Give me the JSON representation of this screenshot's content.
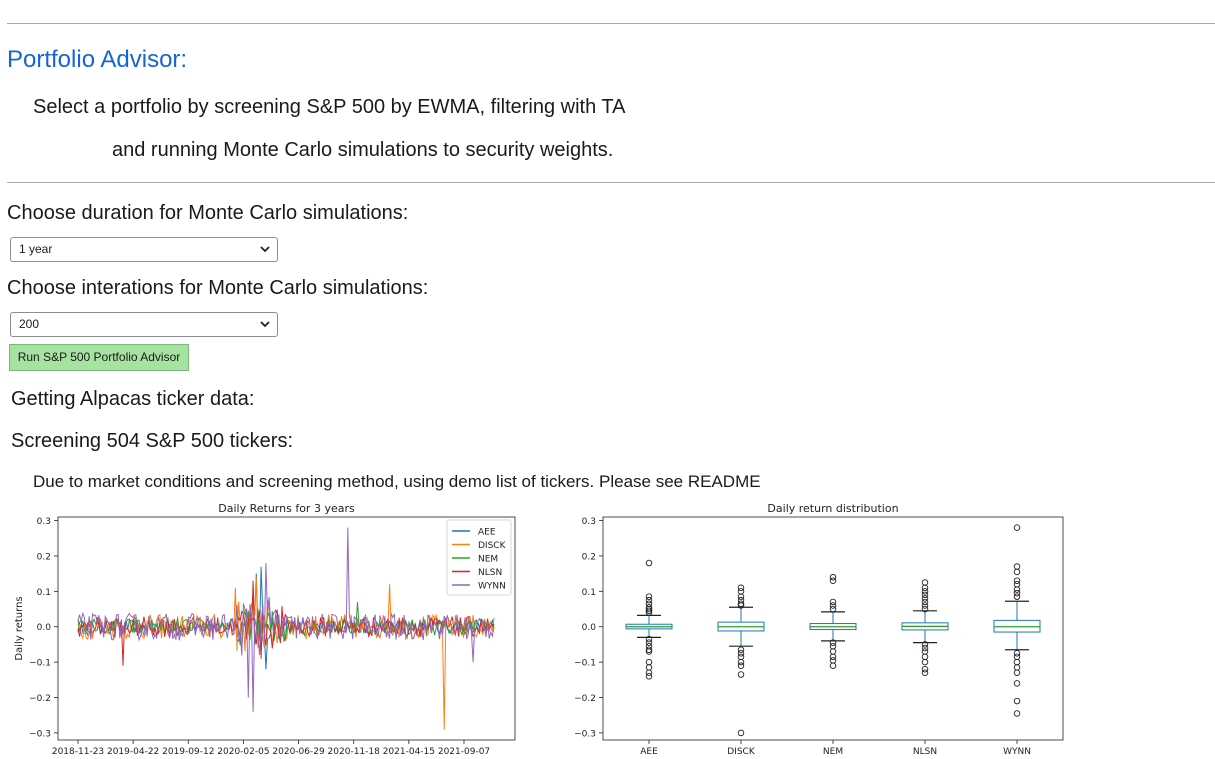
{
  "header": {
    "title": "Portfolio Advisor:",
    "subtitle_line1": "Select a portfolio by screening S&P 500 by EWMA, filtering with TA",
    "subtitle_line2": "and running Monte Carlo simulations to security weights."
  },
  "controls": {
    "duration_label": "Choose duration for Monte Carlo simulations:",
    "duration_value": "1 year",
    "iterations_label": "Choose interations for Monte Carlo simulations:",
    "iterations_value": "200",
    "run_button_label": "Run S&P 500 Portfolio Advisor"
  },
  "output": {
    "step1": "Getting Alpacas ticker data:",
    "step2": "Screening 504 S&P 500 tickers:",
    "note": "Due to market conditions and screening method, using demo list of tickers. Please see README"
  },
  "colors": {
    "title": "#1565d8",
    "run_button": "#a6e3a1",
    "AEE": "#1f77b4",
    "DISCK": "#ff7f0e",
    "NEM": "#2ca02c",
    "NLSN": "#d62728",
    "WYNN": "#9467bd"
  },
  "chart_data": [
    {
      "type": "line",
      "title": "Daily Returns for 3 years",
      "xlabel": "",
      "ylabel": "Daily returns",
      "x_ticks": [
        "2018-11-23",
        "2019-04-22",
        "2019-09-12",
        "2020-02-05",
        "2020-06-29",
        "2020-11-18",
        "2021-04-15",
        "2021-09-07"
      ],
      "y_ticks": [
        -0.3,
        -0.2,
        -0.1,
        0.0,
        0.1,
        0.2,
        0.3
      ],
      "ylim": [
        -0.32,
        0.31
      ],
      "legend": "top-right",
      "series": [
        {
          "name": "AEE",
          "noise": 0.012,
          "spikes": [
            [
              0.43,
              0.15
            ],
            [
              0.44,
              0.17
            ],
            [
              0.45,
              -0.12
            ]
          ]
        },
        {
          "name": "DISCK",
          "noise": 0.022,
          "spikes": [
            [
              0.38,
              0.11
            ],
            [
              0.43,
              0.14
            ],
            [
              0.75,
              0.12
            ],
            [
              0.88,
              -0.29
            ]
          ]
        },
        {
          "name": "NEM",
          "noise": 0.015,
          "spikes": [
            [
              0.42,
              0.1
            ],
            [
              0.44,
              -0.07
            ],
            [
              0.67,
              0.07
            ]
          ]
        },
        {
          "name": "NLSN",
          "noise": 0.018,
          "spikes": [
            [
              0.11,
              -0.11
            ],
            [
              0.42,
              0.13
            ],
            [
              0.44,
              -0.09
            ]
          ]
        },
        {
          "name": "WYNN",
          "noise": 0.024,
          "spikes": [
            [
              0.45,
              0.18
            ],
            [
              0.42,
              -0.24
            ],
            [
              0.41,
              -0.2
            ],
            [
              0.65,
              0.28
            ],
            [
              0.95,
              -0.1
            ]
          ]
        }
      ]
    },
    {
      "type": "box",
      "title": "Daily return distribution",
      "categories": [
        "AEE",
        "DISCK",
        "NEM",
        "NLSN",
        "WYNN"
      ],
      "y_ticks": [
        -0.3,
        -0.2,
        -0.1,
        0.0,
        0.1,
        0.2,
        0.3
      ],
      "ylim": [
        -0.32,
        0.31
      ],
      "boxes": [
        {
          "q1": -0.006,
          "median": 0.0,
          "q3": 0.007,
          "whislo": -0.03,
          "whishi": 0.032,
          "outliers": [
            0.18,
            0.085,
            0.075,
            0.065,
            0.055,
            0.05,
            0.045,
            0.04,
            -0.035,
            -0.045,
            -0.055,
            -0.065,
            -0.07,
            -0.1,
            -0.115,
            -0.13,
            -0.14
          ]
        },
        {
          "q1": -0.012,
          "median": 0.0,
          "q3": 0.013,
          "whislo": -0.055,
          "whishi": 0.055,
          "outliers": [
            0.11,
            0.1,
            0.085,
            0.075,
            0.065,
            0.06,
            -0.065,
            -0.075,
            -0.085,
            -0.1,
            -0.11,
            -0.135,
            -0.3
          ]
        },
        {
          "q1": -0.008,
          "median": 0.0,
          "q3": 0.009,
          "whislo": -0.04,
          "whishi": 0.042,
          "outliers": [
            0.14,
            0.13,
            0.07,
            0.06,
            0.05,
            -0.045,
            -0.055,
            -0.07,
            -0.085,
            -0.095,
            -0.11
          ]
        },
        {
          "q1": -0.009,
          "median": 0.001,
          "q3": 0.011,
          "whislo": -0.045,
          "whishi": 0.045,
          "outliers": [
            0.125,
            0.11,
            0.1,
            0.09,
            0.08,
            0.07,
            0.06,
            0.05,
            -0.05,
            -0.06,
            -0.07,
            -0.085,
            -0.1,
            -0.12,
            -0.13
          ]
        },
        {
          "q1": -0.015,
          "median": 0.0,
          "q3": 0.018,
          "whislo": -0.065,
          "whishi": 0.072,
          "outliers": [
            0.28,
            0.17,
            0.155,
            0.13,
            0.12,
            0.105,
            0.095,
            0.085,
            -0.075,
            -0.085,
            -0.1,
            -0.115,
            -0.13,
            -0.16,
            -0.21,
            -0.245
          ]
        }
      ]
    }
  ]
}
